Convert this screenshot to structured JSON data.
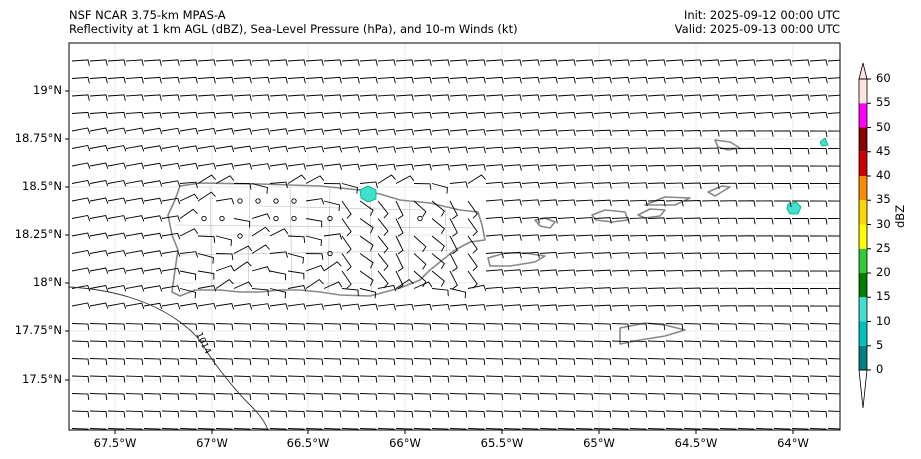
{
  "header": {
    "model": "NSF NCAR 3.75-km MPAS-A",
    "fields": "Reflectivity at 1 km AGL (dBZ), Sea-Level Pressure (hPa), and 10-m Winds (kt)",
    "init": "Init: 2025-09-12 00:00 UTC",
    "valid": "Valid: 2025-09-13 00:00 UTC"
  },
  "map": {
    "lon_ticks": [
      "67.5°W",
      "67°W",
      "66.5°W",
      "66°W",
      "65.5°W",
      "65°W",
      "64.5°W",
      "64°W"
    ],
    "lat_ticks": [
      "19°N",
      "18.75°N",
      "18.5°N",
      "18.25°N",
      "18°N",
      "17.75°N",
      "17.5°N"
    ],
    "isobar_label": "1014",
    "wind_direction": "easterly",
    "barb_speed_kt": 10
  },
  "colorbar": {
    "label": "dBZ",
    "ticks": [
      "0",
      "5",
      "10",
      "15",
      "20",
      "25",
      "30",
      "35",
      "40",
      "45",
      "50",
      "55",
      "60"
    ],
    "colors": [
      "#008080",
      "#00c0c0",
      "#40e0d0",
      "#008000",
      "#32cd32",
      "#ffff00",
      "#ffd700",
      "#ff8c00",
      "#cc0000",
      "#8b0000",
      "#ff00ff",
      "#ffe4e1"
    ]
  }
}
